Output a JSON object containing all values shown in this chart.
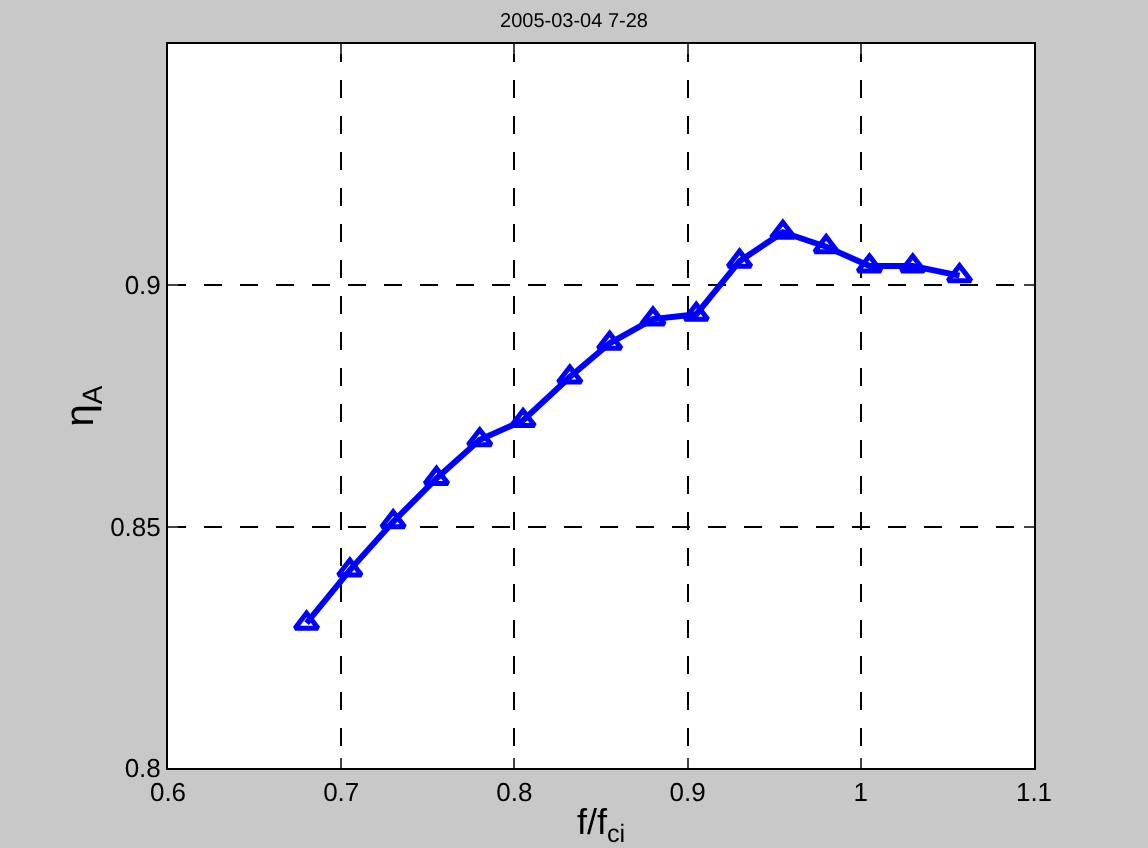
{
  "chart_data": {
    "type": "line",
    "title": "2005-03-04 7-28",
    "xlabel": "f/f$_{ci}$",
    "ylabel": "η$_{A}$",
    "x": [
      0.68,
      0.705,
      0.73,
      0.755,
      0.78,
      0.805,
      0.832,
      0.855,
      0.88,
      0.905,
      0.93,
      0.955,
      0.98,
      1.005,
      1.03,
      1.057
    ],
    "series": [
      {
        "color": "#0000ff",
        "values": [
          0.83,
          0.841,
          0.851,
          0.86,
          0.868,
          0.872,
          0.881,
          0.888,
          0.893,
          0.894,
          0.905,
          0.911,
          0.908,
          0.904,
          0.904,
          0.902
        ]
      }
    ],
    "xlim": [
      0.6,
      1.1
    ],
    "xticks": [
      0.6,
      0.7,
      0.8,
      0.9,
      1,
      1.1
    ],
    "ylim": [
      0.8,
      0.95
    ],
    "yticks": [
      0.8,
      0.85,
      0.9
    ],
    "grid": true,
    "marker": "triangle",
    "line_style": "solid"
  }
}
